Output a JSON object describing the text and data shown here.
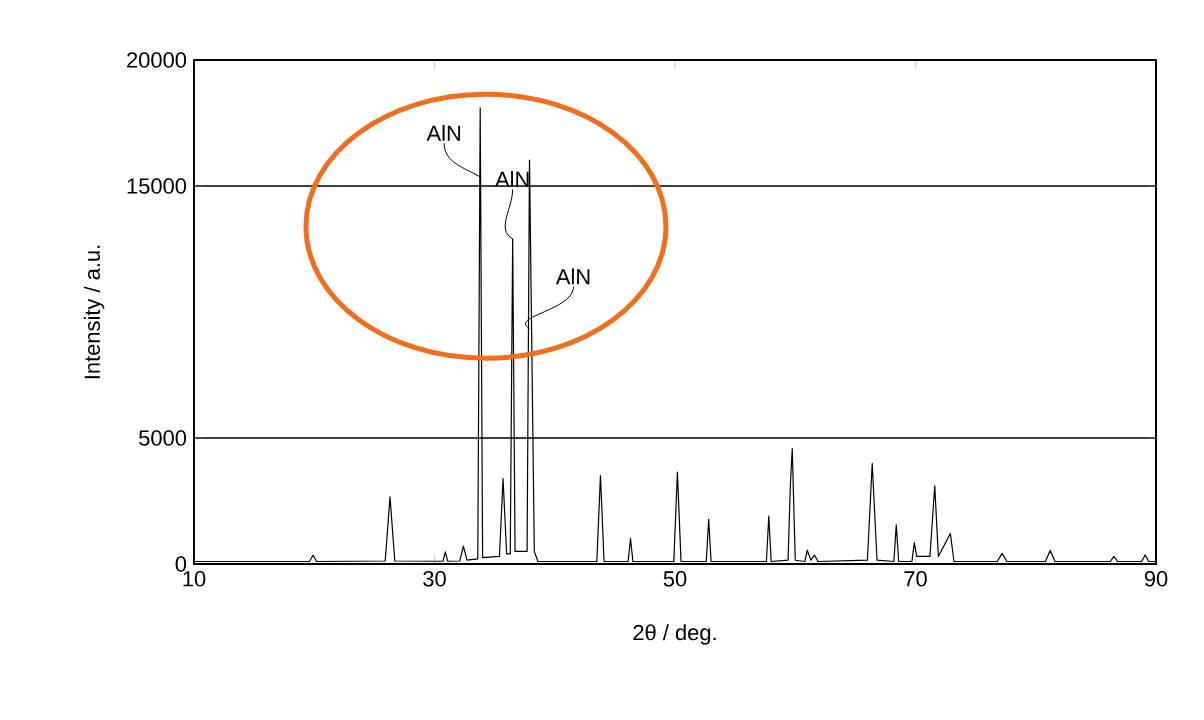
{
  "chart_data": {
    "type": "line",
    "xlabel": "2θ / deg.",
    "ylabel": "Intensity / a.u.",
    "xlim": [
      10,
      90
    ],
    "xticks": [
      10,
      30,
      50,
      70,
      90
    ],
    "ylim": [
      0,
      20000
    ],
    "yticks": [
      0,
      5000,
      15000,
      20000
    ],
    "grid": "y",
    "marker": "none",
    "line_style": "solid",
    "annotations": [
      {
        "text": "AlN",
        "x": 33.8,
        "y": 15360
      },
      {
        "text": "AlN",
        "x": 36.5,
        "y": 12900
      },
      {
        "text": "AlN",
        "x": 37.9,
        "y": 9350
      }
    ],
    "series": [
      {
        "color": "#000000",
        "x": [
          10,
          19.6,
          19.9,
          20.2,
          25.9,
          26.3,
          26.7,
          30.7,
          30.9,
          31.1,
          32.1,
          32.4,
          32.7,
          33.6,
          33.8,
          34.0,
          35.4,
          35.7,
          36.0,
          36.3,
          36.5,
          36.7,
          37.7,
          37.9,
          38.3,
          38.6,
          43.5,
          43.8,
          44.1,
          46.1,
          46.3,
          46.5,
          49.9,
          50.2,
          50.5,
          52.6,
          52.8,
          53.0,
          57.6,
          57.8,
          58.0,
          59.4,
          59.6,
          59.75,
          60.0,
          60.8,
          61.0,
          61.3,
          61.6,
          61.9,
          66.0,
          66.4,
          66.8,
          68.2,
          68.4,
          68.6,
          69.7,
          69.9,
          70.1,
          71.2,
          71.6,
          71.9,
          72.9,
          73.2,
          76.8,
          77.2,
          77.6,
          80.8,
          81.2,
          81.6,
          86.2,
          86.5,
          86.8,
          88.8,
          89.1,
          89.4,
          90
        ],
        "values": [
          100,
          100,
          350,
          100,
          120,
          2660,
          120,
          110,
          480,
          110,
          120,
          710,
          150,
          200,
          18100,
          250,
          300,
          3390,
          400,
          400,
          12900,
          500,
          500,
          16030,
          500,
          100,
          100,
          3510,
          100,
          100,
          1010,
          100,
          100,
          3650,
          100,
          100,
          1770,
          100,
          100,
          1900,
          100,
          150,
          3200,
          4580,
          150,
          100,
          550,
          150,
          350,
          100,
          150,
          3990,
          150,
          100,
          1550,
          100,
          100,
          850,
          300,
          300,
          3100,
          300,
          1210,
          100,
          100,
          420,
          100,
          100,
          540,
          100,
          100,
          300,
          100,
          100,
          360,
          100,
          100
        ]
      }
    ]
  }
}
